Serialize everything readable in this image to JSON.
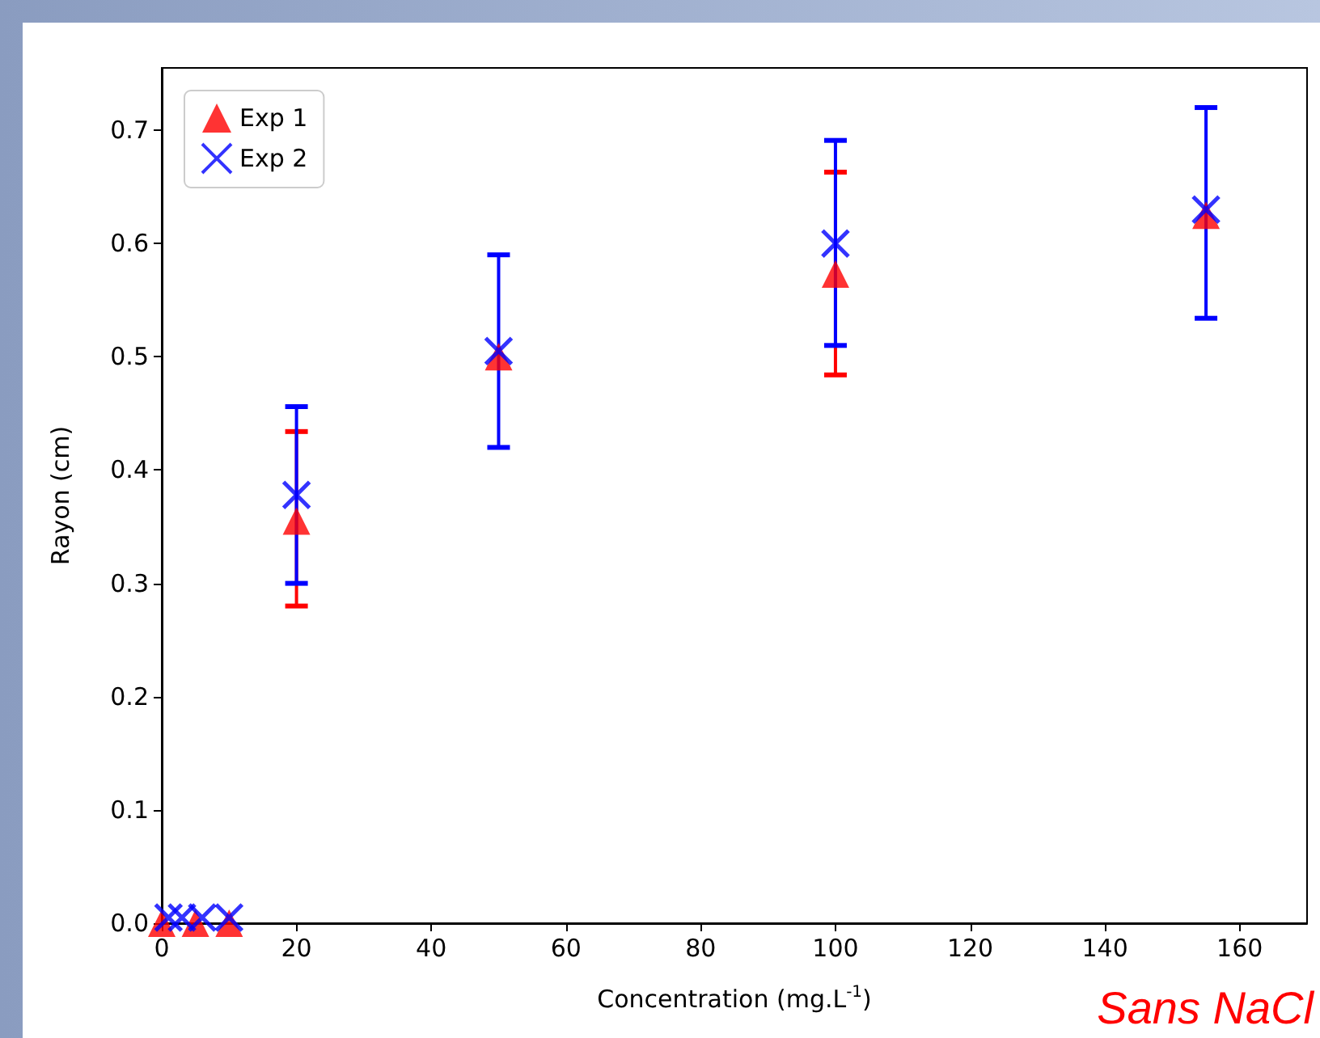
{
  "chart_data": {
    "type": "scatter",
    "xlabel": "Concentration (mg.L$^{-1}$)",
    "ylabel": "Rayon (cm)",
    "annotations": [
      "Sans NaCl"
    ],
    "xlim": [
      0,
      170
    ],
    "xticks": [
      0,
      20,
      40,
      60,
      80,
      100,
      120,
      140,
      160
    ],
    "ylim": [
      0,
      0.755
    ],
    "yticks": [
      {
        "value": 0,
        "label": "0.0"
      },
      0.1,
      0.2,
      0.3,
      0.4,
      0.5,
      0.6,
      {
        "value": 0.7,
        "label": "0.7"
      }
    ],
    "grid": false,
    "legend": "top left",
    "series": [
      {
        "name": "Exp 1",
        "color": "#ff0000",
        "marker": "triangle",
        "x": [
          0,
          5,
          10,
          20,
          50,
          100,
          155
        ],
        "values": [
          0,
          0,
          0,
          0.355,
          0.5,
          0.573,
          0.625
        ],
        "errors": [
          null,
          null,
          null,
          [
            0.28,
            0.434
          ],
          null,
          [
            0.484,
            0.663
          ],
          null
        ]
      },
      {
        "name": "Exp 2",
        "color": "#0000ff",
        "marker": "cross",
        "x": [
          1,
          3,
          6,
          10,
          20,
          50,
          100,
          155
        ],
        "values": [
          0.005,
          0.005,
          0.005,
          0.005,
          0.378,
          0.505,
          0.6,
          0.63
        ],
        "errors": [
          null,
          null,
          null,
          null,
          [
            0.3,
            0.456
          ],
          [
            0.42,
            0.59
          ],
          [
            0.51,
            0.691
          ],
          [
            0.534,
            0.72
          ]
        ]
      }
    ]
  }
}
